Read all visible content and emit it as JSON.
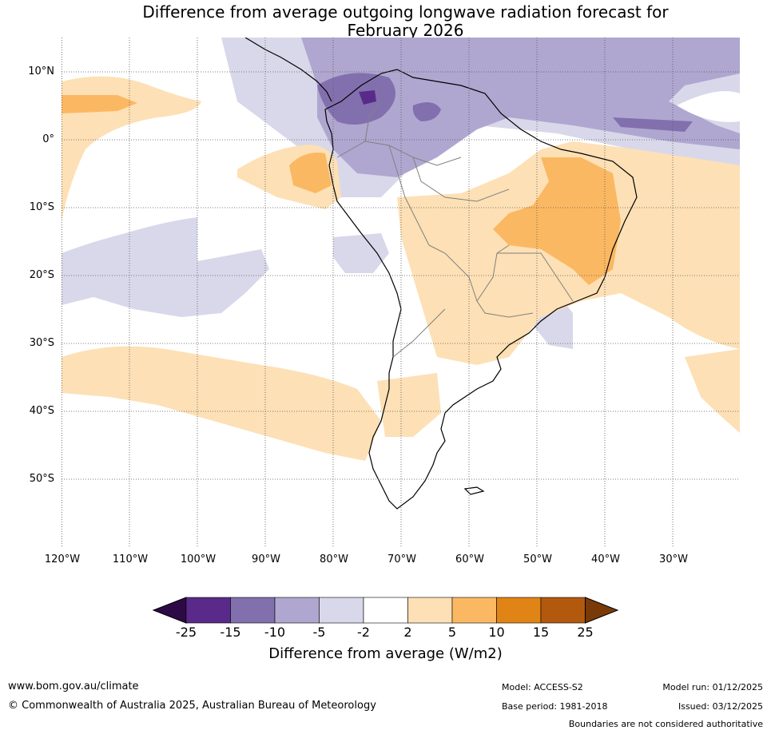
{
  "title": {
    "line1": "Difference from average outgoing longwave radiation forecast for",
    "line2": "February 2026"
  },
  "map": {
    "lat_labels": [
      "10°N",
      "0°",
      "10°S",
      "20°S",
      "30°S",
      "40°S",
      "50°S"
    ],
    "lon_labels": [
      "120°W",
      "110°W",
      "100°W",
      "90°W",
      "80°W",
      "70°W",
      "60°W",
      "50°W",
      "40°W",
      "30°W"
    ]
  },
  "colorbar": {
    "ticks": [
      "-25",
      "-15",
      "-10",
      "-5",
      "-2",
      "2",
      "5",
      "10",
      "15",
      "25"
    ],
    "title": "Difference from average (W/m2)",
    "colors": [
      "#2d0a45",
      "#5a2a8a",
      "#8270ae",
      "#afa7d0",
      "#d9d8ea",
      "#ffffff",
      "#fde0b5",
      "#fbb862",
      "#e08415",
      "#b3590e",
      "#7a3a08"
    ]
  },
  "footer": {
    "website": "www.bom.gov.au/climate",
    "copyright": "© Commonwealth of Australia 2025, Australian Bureau of Meteorology",
    "model": "Model: ACCESS-S2",
    "base_period": "Base period: 1981-2018",
    "model_run": "Model run: 01/12/2025",
    "issued": "Issued: 03/12/2025",
    "disclaimer": "Boundaries are not considered authoritative"
  }
}
